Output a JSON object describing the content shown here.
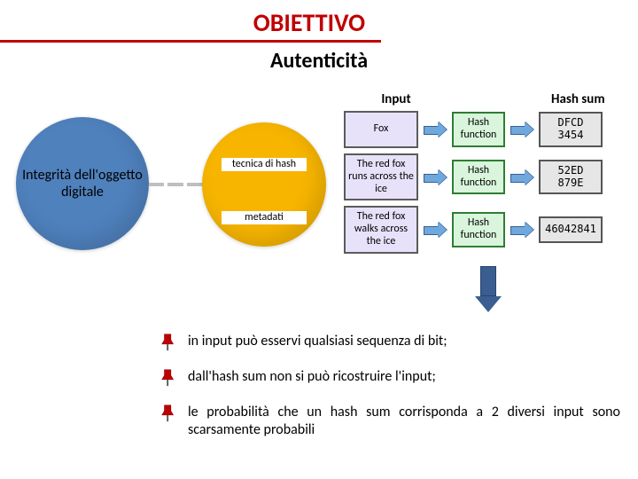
{
  "title": {
    "text": "OBIETTIVO",
    "color": "#c00000",
    "fontsize": 28,
    "underline_color": "#c00000"
  },
  "subtitle": {
    "text": "Autenticità",
    "fontsize": 24,
    "color": "#000000"
  },
  "left_circle": {
    "label": "Integrità dell'oggetto digitale",
    "fill": "#4f81bd",
    "text_color": "#000000",
    "diameter": 150
  },
  "connector": {
    "color": "#bfbfbf"
  },
  "yellow_circle": {
    "fill": "#f7b500",
    "diameter": 140,
    "top_label": "tecnica di hash",
    "bottom_label": "metadati"
  },
  "hash_diagram": {
    "headers": {
      "input": "Input",
      "sum": "Hash sum"
    },
    "func_label": "Hash function",
    "colors": {
      "input_border": "#5b5b5b",
      "input_fill": "#e7e2fa",
      "func_border": "#2e7d32",
      "func_fill": "#d9f5dc",
      "sum_border": "#555555",
      "sum_fill": "#e6e6e6",
      "arrow_fill": "#6fa8dc",
      "arrow_border": "#366091"
    },
    "rows": [
      {
        "input": "Fox",
        "sum": "DFCD 3454"
      },
      {
        "input": "The red fox runs across the ice",
        "sum": "52ED 879E"
      },
      {
        "input": "The red fox walks across the ice",
        "sum": "46042841"
      }
    ]
  },
  "big_arrow": {
    "fill": "#3b5e91",
    "border": "#27436b"
  },
  "bullets": {
    "items": [
      "in input può esservi qualsiasi sequenza di bit;",
      "dall'hash sum non si può ricostruire l'input;",
      "le probabilità che un hash sum corrisponda a 2 diversi input sono scarsamente probabili"
    ],
    "fontsize": 16,
    "pin_color": "#c00000"
  }
}
